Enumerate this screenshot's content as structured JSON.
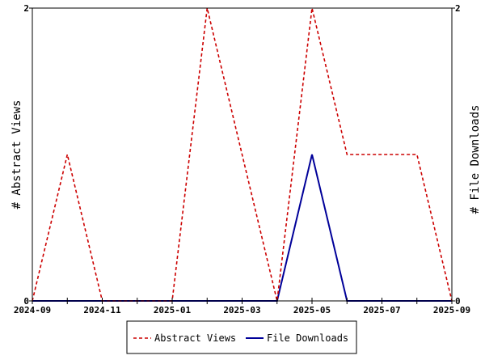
{
  "chart_data": {
    "type": "line",
    "title": "",
    "x": [
      "2024-09",
      "2024-10",
      "2024-11",
      "2024-12",
      "2025-01",
      "2025-02",
      "2025-03",
      "2025-04",
      "2025-05",
      "2025-06",
      "2025-07",
      "2025-08",
      "2025-09"
    ],
    "x_tick_labels": [
      "2024-09",
      "2024-11",
      "2025-01",
      "2025-03",
      "2025-05",
      "2025-07",
      "2025-09"
    ],
    "ylabel_left": "# Abstract Views",
    "ylabel_right": "# File Downloads",
    "ylim_left": [
      0,
      2
    ],
    "ylim_right": [
      0,
      2
    ],
    "y_tick_labels_left": [
      "0",
      "2"
    ],
    "y_tick_labels_right": [
      "0",
      "2"
    ],
    "grid": false,
    "legend_position": "bottom",
    "series": [
      {
        "name": "Abstract Views",
        "axis": "left",
        "color": "#cc0000",
        "dash": "dashed",
        "values": [
          0,
          1,
          0,
          0,
          0,
          2,
          1,
          0,
          2,
          1,
          1,
          1,
          0
        ]
      },
      {
        "name": "File Downloads",
        "axis": "right",
        "color": "#000099",
        "dash": "solid",
        "values": [
          0,
          0,
          0,
          0,
          0,
          0,
          0,
          0,
          1,
          0,
          0,
          0,
          0
        ]
      }
    ]
  }
}
